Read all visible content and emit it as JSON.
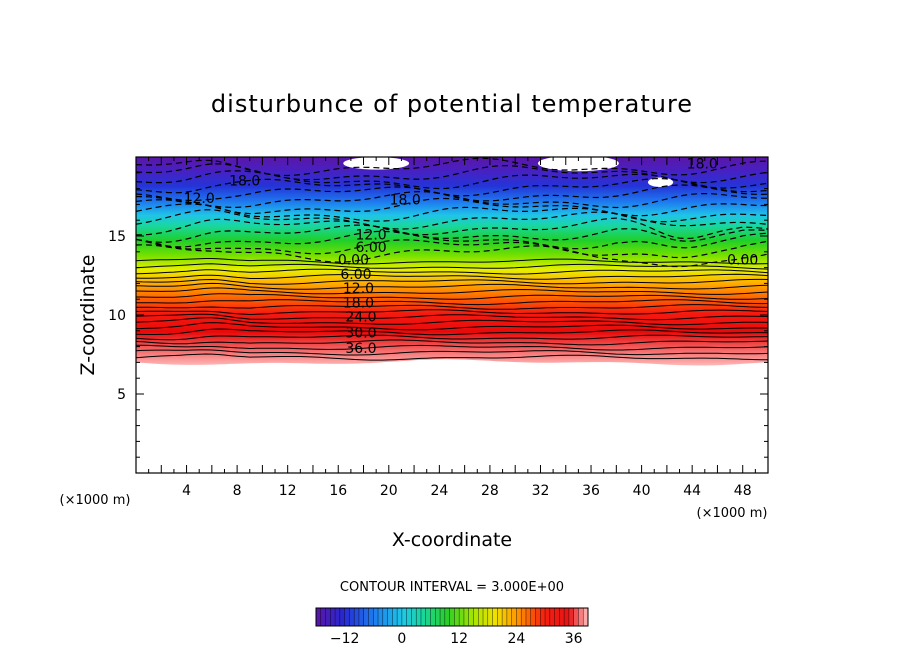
{
  "chart_data": {
    "type": "heatmap",
    "title": "disturbunce of potential temperature",
    "xlabel": "X-coordinate",
    "ylabel": "Z-coordinate",
    "x_unit": "(×1000 m)",
    "z_unit": "(×1000 m)",
    "xlim": [
      0,
      50
    ],
    "ylim": [
      0,
      20
    ],
    "x_ticks": [
      "4",
      "8",
      "12",
      "16",
      "20",
      "24",
      "28",
      "32",
      "36",
      "40",
      "44",
      "48"
    ],
    "x_tick_values": [
      4,
      8,
      12,
      16,
      20,
      24,
      28,
      32,
      36,
      40,
      44,
      48
    ],
    "y_ticks": [
      "5",
      "10",
      "15"
    ],
    "y_tick_values": [
      5,
      10,
      15
    ],
    "contour_interval_text": "CONTOUR INTERVAL = 3.000E+00",
    "contour_interval": 3.0,
    "color_range": [
      -18,
      39
    ],
    "colorbar_ticks": [
      "−12",
      "0",
      "12",
      "24",
      "36"
    ],
    "colorbar_tick_values": [
      -12,
      0,
      12,
      24,
      36
    ],
    "contour_labels": [
      {
        "text": "36.0",
        "x": 17.8,
        "z": 7.9
      },
      {
        "text": "30.0",
        "x": 17.8,
        "z": 8.9
      },
      {
        "text": "24.0",
        "x": 17.8,
        "z": 9.9
      },
      {
        "text": "18.0",
        "x": 17.6,
        "z": 10.8
      },
      {
        "text": "12.0",
        "x": 17.6,
        "z": 11.7
      },
      {
        "text": "6.00",
        "x": 17.4,
        "z": 12.6
      },
      {
        "text": "0.00",
        "x": 17.2,
        "z": 13.5
      },
      {
        "text": "6.00",
        "x": 18.6,
        "z": 14.3
      },
      {
        "text": "12.0",
        "x": 18.6,
        "z": 15.1
      },
      {
        "text": "0.00",
        "x": 48.0,
        "z": 13.5
      },
      {
        "text": "18.0",
        "x": 21.3,
        "z": 17.3
      },
      {
        "text": "18.0",
        "x": 8.6,
        "z": 18.5
      },
      {
        "text": "12.0",
        "x": 5.0,
        "z": 17.4
      },
      {
        "text": "18.0",
        "x": 44.8,
        "z": 19.6
      }
    ]
  }
}
